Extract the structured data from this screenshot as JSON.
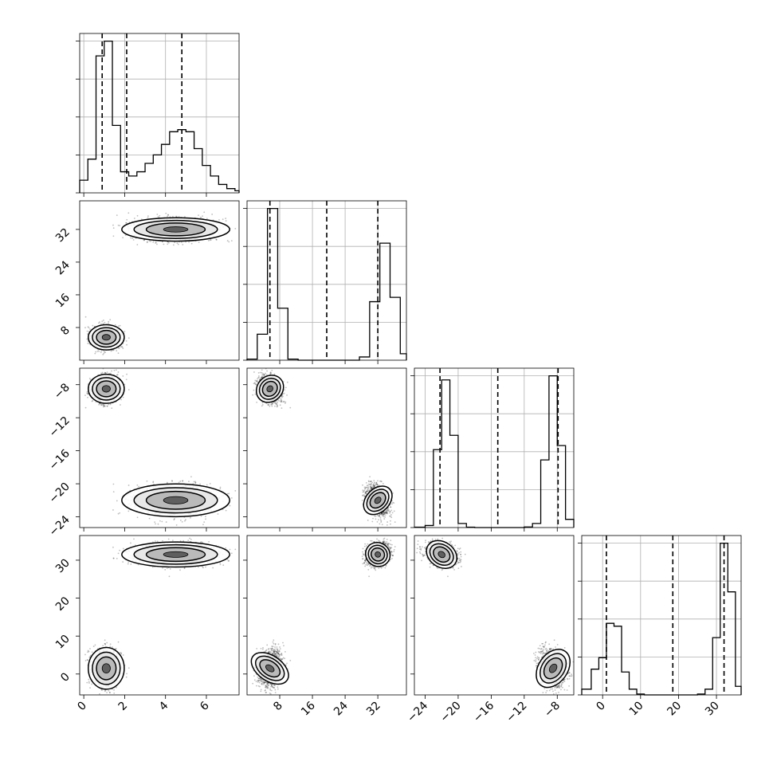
{
  "chart_data": {
    "type": "corner",
    "grid": true,
    "n_params": 4,
    "variables": [
      {
        "name": "",
        "range": [
          -0.2,
          7.6
        ],
        "ticks": [
          0,
          2,
          4,
          6
        ],
        "tick_labels": [
          "0",
          "2",
          "4",
          "6"
        ],
        "quantiles": [
          0.9,
          2.1,
          4.8
        ]
      },
      {
        "name": "",
        "range": [
          0,
          39
        ],
        "ticks": [
          8,
          16,
          24,
          32
        ],
        "tick_labels": [
          "8",
          "16",
          "24",
          "32"
        ],
        "quantiles": [
          5.6,
          19.5,
          32.0
        ]
      },
      {
        "name": "",
        "range": [
          -25.3,
          -6.0
        ],
        "ticks": [
          -24,
          -20,
          -16,
          -12,
          -8
        ],
        "tick_labels": [
          "−24",
          "−20",
          "−16",
          "−12",
          "−8"
        ],
        "quantiles": [
          -22.2,
          -15.2,
          -7.9
        ]
      },
      {
        "name": "",
        "range": [
          -5.5,
          36.5
        ],
        "ticks": [
          0,
          10,
          20,
          30
        ],
        "tick_labels": [
          "0",
          "10",
          "20",
          "30"
        ],
        "quantiles": [
          1.0,
          18.5,
          32.0
        ]
      }
    ],
    "histograms": [
      {
        "var": 0,
        "edges": [
          -0.2,
          0.2,
          0.6,
          1.0,
          1.4,
          1.8,
          2.2,
          2.6,
          3.0,
          3.4,
          3.8,
          4.2,
          4.6,
          5.0,
          5.4,
          5.8,
          6.2,
          6.6,
          7.0,
          7.4,
          7.6
        ],
        "counts": [
          6,
          16,
          65,
          72,
          32,
          10,
          8,
          10,
          14,
          18,
          23,
          29,
          30,
          29,
          21,
          13,
          8,
          4,
          2,
          1
        ]
      },
      {
        "var": 1,
        "edges": [
          0,
          2.5,
          5,
          7.5,
          10,
          12.5,
          15,
          17.5,
          20,
          22.5,
          25,
          27.5,
          30,
          32.5,
          35,
          37.5,
          39
        ],
        "counts": [
          0.5,
          12,
          70,
          24,
          0.5,
          0,
          0,
          0,
          0,
          0,
          0,
          1.5,
          27,
          54,
          29,
          3
        ]
      },
      {
        "var": 2,
        "edges": [
          -25.3,
          -24,
          -23,
          -22,
          -21,
          -20,
          -19,
          -18,
          -17,
          -16,
          -15,
          -14,
          -13,
          -12,
          -11,
          -10,
          -9,
          -8,
          -7,
          -6
        ],
        "counts": [
          0.2,
          1,
          38,
          72,
          45,
          2,
          0.2,
          0,
          0,
          0,
          0,
          0,
          0,
          0.3,
          2,
          33,
          74,
          40,
          4
        ]
      },
      {
        "var": 3,
        "edges": [
          -5.5,
          -3,
          -1,
          1,
          3,
          5,
          7,
          9,
          11,
          13,
          15,
          17,
          19,
          21,
          23,
          25,
          27,
          29,
          31,
          33,
          35,
          36.5
        ],
        "counts": [
          2,
          9,
          13,
          25,
          24,
          8,
          2,
          0.3,
          0,
          0,
          0,
          0,
          0,
          0,
          0,
          0.3,
          2,
          20,
          53,
          36,
          3
        ]
      }
    ],
    "clusters": [
      {
        "means": [
          1.1,
          5.6,
          -8.5,
          1.5
        ],
        "std": [
          0.4,
          1.4,
          0.8,
          2.5
        ],
        "weight": 0.46
      },
      {
        "means": [
          4.5,
          32.0,
          -22.0,
          31.5
        ],
        "std": [
          1.2,
          1.3,
          0.9,
          1.5
        ],
        "weight": 0.54
      }
    ]
  }
}
